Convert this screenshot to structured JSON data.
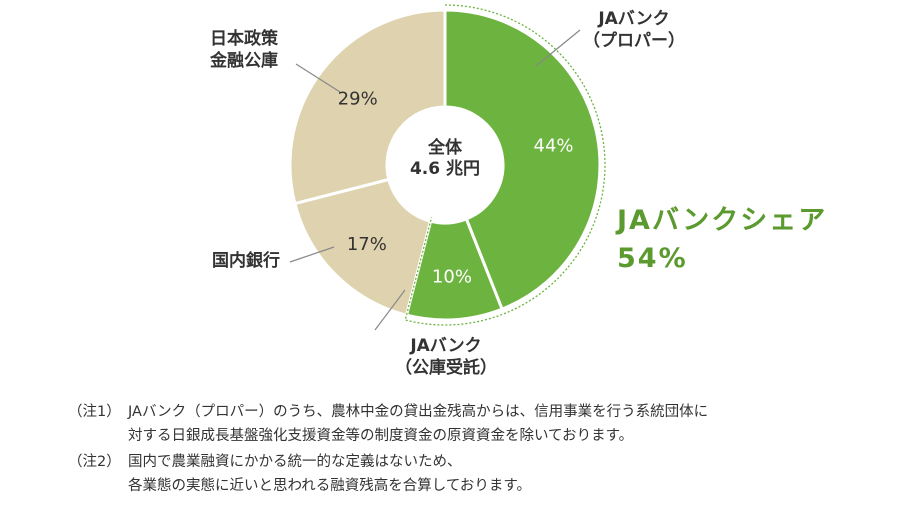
{
  "chart_data": {
    "type": "pie",
    "variant": "donut",
    "total_label": [
      "全体",
      "4.6 兆円"
    ],
    "slices": [
      {
        "name": "JAバンク（プロパー）",
        "label_lines": [
          "JAバンク",
          "（プロパー）"
        ],
        "value": 44,
        "value_label": "44%",
        "group": "ja",
        "color": "#6db33f"
      },
      {
        "name": "JAバンク（公庫受託）",
        "label_lines": [
          "JAバンク",
          "（公庫受託）"
        ],
        "value": 10,
        "value_label": "10%",
        "group": "ja",
        "color": "#6db33f"
      },
      {
        "name": "国内銀行",
        "label_lines": [
          "国内銀行"
        ],
        "value": 17,
        "value_label": "17%",
        "group": "other",
        "color": "#ded3ae"
      },
      {
        "name": "日本政策金融公庫",
        "label_lines": [
          "日本政策",
          "金融公庫"
        ],
        "value": 29,
        "value_label": "29%",
        "group": "other",
        "color": "#ded3ae"
      }
    ],
    "highlight": {
      "title": "JAバンクシェア",
      "value": "54%",
      "color": "#5b9a2e"
    }
  },
  "notes": [
    {
      "mark": "（注1）",
      "lines": [
        "JAバンク（プロパー）のうち、農林中金の貸出金残高からは、信用事業を行う系統団体に",
        "対する日銀成長基盤強化支援資金等の制度資金の原資資金を除いております。"
      ]
    },
    {
      "mark": "（注2）",
      "lines": [
        "国内で農業融資にかかる統一的な定義はないため、",
        "各業態の実態に近いと思われる融資残高を合算しております。"
      ]
    }
  ]
}
